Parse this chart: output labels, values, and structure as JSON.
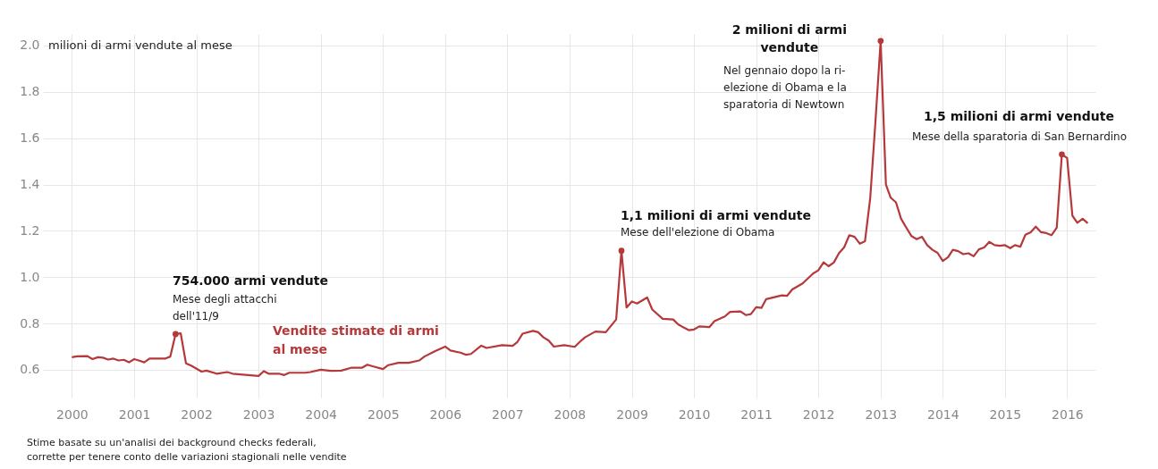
{
  "chart_data": {
    "type": "line",
    "ylabel": "milioni di armi vendute al mese",
    "x": [
      "2000-01",
      "2000-02",
      "2000-04",
      "2000-05",
      "2000-06",
      "2000-07",
      "2000-08",
      "2000-09",
      "2000-10",
      "2000-11",
      "2000-12",
      "2001-01",
      "2001-02",
      "2001-03",
      "2001-04",
      "2001-07",
      "2001-08",
      "2001-09",
      "2001-10",
      "2001-11",
      "2001-12",
      "2002-02",
      "2002-03",
      "2002-05",
      "2002-07",
      "2002-08",
      "2002-10",
      "2003-01",
      "2003-02",
      "2003-03",
      "2003-05",
      "2003-06",
      "2003-07",
      "2003-10",
      "2003-11",
      "2004-01",
      "2004-03",
      "2004-05",
      "2004-07",
      "2004-09",
      "2004-10",
      "2004-11",
      "2005-01",
      "2005-02",
      "2005-04",
      "2005-06",
      "2005-08",
      "2005-09",
      "2005-11",
      "2006-01",
      "2006-02",
      "2006-04",
      "2006-05",
      "2006-06",
      "2006-08",
      "2006-09",
      "2006-12",
      "2007-02",
      "2007-03",
      "2007-04",
      "2007-06",
      "2007-07",
      "2007-08",
      "2007-09",
      "2007-10",
      "2007-12",
      "2008-02",
      "2008-03",
      "2008-04",
      "2008-06",
      "2008-08",
      "2008-10",
      "2008-11",
      "2008-12",
      "2009-01",
      "2009-02",
      "2009-04",
      "2009-05",
      "2009-07",
      "2009-09",
      "2009-10",
      "2009-12",
      "2010-01",
      "2010-02",
      "2010-04",
      "2010-05",
      "2010-07",
      "2010-08",
      "2010-10",
      "2010-11",
      "2010-12",
      "2011-01",
      "2011-02",
      "2011-03",
      "2011-06",
      "2011-07",
      "2011-08",
      "2011-10",
      "2011-12",
      "2012-01",
      "2012-02",
      "2012-03",
      "2012-04",
      "2012-05",
      "2012-06",
      "2012-07",
      "2012-08",
      "2012-09",
      "2012-10",
      "2012-11",
      "2012-12",
      "2013-01",
      "2013-02",
      "2013-03",
      "2013-04",
      "2013-05",
      "2013-06",
      "2013-07",
      "2013-08",
      "2013-09",
      "2013-10",
      "2013-11",
      "2013-12",
      "2014-01",
      "2014-02",
      "2014-03",
      "2014-04",
      "2014-05",
      "2014-06",
      "2014-07",
      "2014-08",
      "2014-09",
      "2014-10",
      "2014-11",
      "2014-12",
      "2015-01",
      "2015-02",
      "2015-03",
      "2015-04",
      "2015-05",
      "2015-06",
      "2015-07",
      "2015-08",
      "2015-09",
      "2015-10",
      "2015-11",
      "2015-12",
      "2016-01",
      "2016-02",
      "2016-03",
      "2016-04",
      "2016-05"
    ],
    "series": [
      {
        "name": "Vendite stimate di armi\nal mese",
        "color": "#b5383a",
        "values": [
          0.654,
          0.658,
          0.659,
          0.646,
          0.654,
          0.652,
          0.644,
          0.648,
          0.64,
          0.643,
          0.632,
          0.646,
          0.639,
          0.632,
          0.648,
          0.648,
          0.657,
          0.754,
          0.757,
          0.628,
          0.618,
          0.592,
          0.596,
          0.583,
          0.59,
          0.583,
          0.579,
          0.573,
          0.594,
          0.583,
          0.583,
          0.577,
          0.587,
          0.587,
          0.59,
          0.6,
          0.595,
          0.596,
          0.609,
          0.609,
          0.622,
          0.615,
          0.603,
          0.62,
          0.63,
          0.63,
          0.64,
          0.657,
          0.68,
          0.7,
          0.683,
          0.674,
          0.665,
          0.668,
          0.704,
          0.694,
          0.706,
          0.703,
          0.72,
          0.756,
          0.768,
          0.762,
          0.74,
          0.726,
          0.7,
          0.706,
          0.699,
          0.72,
          0.74,
          0.765,
          0.762,
          0.817,
          1.114,
          0.869,
          0.895,
          0.886,
          0.912,
          0.86,
          0.82,
          0.817,
          0.795,
          0.771,
          0.774,
          0.787,
          0.784,
          0.81,
          0.83,
          0.85,
          0.852,
          0.836,
          0.84,
          0.87,
          0.867,
          0.905,
          0.921,
          0.919,
          0.947,
          0.973,
          1.015,
          1.029,
          1.064,
          1.047,
          1.063,
          1.103,
          1.129,
          1.181,
          1.174,
          1.144,
          1.155,
          1.343,
          1.667,
          2.02,
          1.4,
          1.343,
          1.323,
          1.252,
          1.213,
          1.177,
          1.164,
          1.174,
          1.138,
          1.118,
          1.105,
          1.07,
          1.086,
          1.118,
          1.112,
          1.099,
          1.103,
          1.09,
          1.12,
          1.128,
          1.152,
          1.138,
          1.135,
          1.138,
          1.125,
          1.138,
          1.131,
          1.183,
          1.194,
          1.218,
          1.194,
          1.19,
          1.181,
          1.213,
          1.53,
          1.514,
          1.265,
          1.235,
          1.252,
          1.233
        ]
      },
      {
        "type": "scatter",
        "color": "#b5383a",
        "marker": "circle",
        "x": [
          "2001-09",
          "2008-11",
          "2013-01",
          "2015-12"
        ],
        "values": [
          0.754,
          1.114,
          2.02,
          1.53
        ]
      }
    ],
    "xlim": [
      "1999-07-15",
      "2016-06-15"
    ],
    "xticks": [
      "2000",
      "2001",
      "2002",
      "2003",
      "2004",
      "2005",
      "2006",
      "2007",
      "2008",
      "2009",
      "2010",
      "2011",
      "2012",
      "2013",
      "2014",
      "2015",
      "2016"
    ],
    "ylim": [
      0.48,
      2.05
    ],
    "yticks": [
      0.6,
      0.8,
      {
        "value": 1.0,
        "label": "1.0"
      },
      1.2,
      1.4,
      1.6,
      1.8,
      {
        "value": 2.0,
        "label": "2.0"
      }
    ],
    "grid": true,
    "legend": false,
    "annotations": [
      "754.000 armi vendute",
      "Mese degli attacchi\ndell'11/9",
      {
        "text": "1,1 milioni di armi vendute",
        "x": "2008-11",
        "y": 1.114
      },
      "Mese dell'elezione di Obama",
      {
        "text": "2 milioni di armi\nvendute",
        "x": "2013-01",
        "y": 2.02
      },
      "Nel gennaio dopo la ri-\nelezione di Obama e la\nsparatoria di Newtown",
      {
        "text": "1,5 milioni di armi vendute",
        "x": "2015-12",
        "y": 1.53
      },
      "Mese della sparatoria di San Bernardino",
      "Stime basate su un'analisi dei background checks federali,\ncorrette per tenere conto delle variazioni stagionali nelle vendite"
    ]
  }
}
